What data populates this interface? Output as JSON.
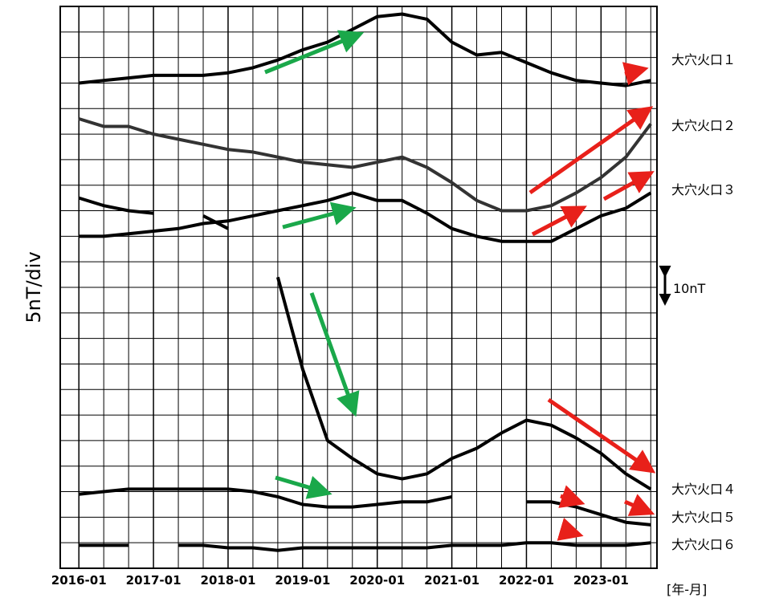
{
  "chart_data": {
    "type": "line",
    "y_label": "5nT/div",
    "x_label": "[年-月]",
    "scale_label": "10nT",
    "x": [
      "2016-01",
      "2016-05",
      "2016-09",
      "2017-01",
      "2017-05",
      "2017-09",
      "2018-01",
      "2018-05",
      "2018-09",
      "2019-01",
      "2019-05",
      "2019-09",
      "2020-01",
      "2020-05",
      "2020-09",
      "2021-01",
      "2021-05",
      "2021-09",
      "2022-01",
      "2022-05",
      "2022-09",
      "2023-01",
      "2023-05",
      "2023-09"
    ],
    "xlim": [
      "2015-10",
      "2023-10"
    ],
    "xticks": [
      "2016-01",
      "2017-01",
      "2018-01",
      "2019-01",
      "2020-01",
      "2021-01",
      "2022-01",
      "2023-01"
    ],
    "xminor_ticks": [
      "2016-05",
      "2016-09",
      "2017-05",
      "2017-09",
      "2018-05",
      "2018-09",
      "2019-05",
      "2019-09",
      "2020-05",
      "2020-09",
      "2021-05",
      "2021-09",
      "2022-05",
      "2022-09",
      "2023-05",
      "2023-09"
    ],
    "ylim": [
      0,
      110
    ],
    "yticks": [
      0,
      5,
      10,
      15,
      20,
      25,
      30,
      35,
      40,
      45,
      50,
      55,
      60,
      65,
      70,
      75,
      80,
      85,
      90,
      95,
      100,
      105,
      110
    ],
    "grid": true,
    "series": [
      {
        "name": "大穴火口１",
        "color": "#000000",
        "values": [
          95,
          95.5,
          96,
          96.5,
          96.5,
          96.5,
          97,
          98,
          99.5,
          101.5,
          103,
          105.5,
          108,
          108.5,
          107.5,
          103,
          100.5,
          101,
          99,
          97,
          95.5,
          95,
          94.5,
          95.5
        ]
      },
      {
        "name": "大穴火口２",
        "color": "#333333",
        "values": [
          88,
          86.5,
          86.5,
          85,
          84,
          83,
          82,
          81.5,
          80.5,
          79.5,
          79,
          78.5,
          79.5,
          80.5,
          78.5,
          75.5,
          72,
          70,
          70,
          71,
          73.5,
          76.5,
          80.5,
          87
        ]
      },
      {
        "name": "大穴火口３",
        "color": "#000000",
        "values": [
          65,
          65,
          65.5,
          66,
          66.5,
          67.5,
          68,
          69,
          70,
          71,
          72,
          73.5,
          72,
          72,
          69.5,
          66.5,
          65,
          64,
          64,
          64,
          66.5,
          69,
          70.5,
          73.5
        ]
      },
      {
        "name": "大穴火口４",
        "color": "#000000",
        "values": [
          72.5,
          71,
          70,
          69.5,
          null,
          69,
          66.5,
          null,
          57,
          39,
          25,
          21.5,
          18.5,
          17.5,
          18.5,
          21.5,
          23.5,
          26.5,
          29,
          28,
          25.5,
          22.5,
          18.5,
          15.5
        ]
      },
      {
        "name": "大穴火口５",
        "color": "#000000",
        "values": [
          14.5,
          15,
          15.5,
          15.5,
          15.5,
          15.5,
          15.5,
          15,
          14,
          12.5,
          12,
          12,
          12.5,
          13,
          13,
          14,
          null,
          null,
          13,
          13,
          12,
          10.5,
          9,
          8.5
        ]
      },
      {
        "name": "大穴火口６",
        "color": "#000000",
        "values": [
          4.5,
          4.5,
          4.5,
          null,
          4.5,
          4.5,
          4,
          4,
          3.5,
          4,
          4,
          4,
          4,
          4,
          4,
          4.5,
          4.5,
          4.5,
          5,
          5,
          4.5,
          4.5,
          4.5,
          5
        ]
      }
    ]
  }
}
